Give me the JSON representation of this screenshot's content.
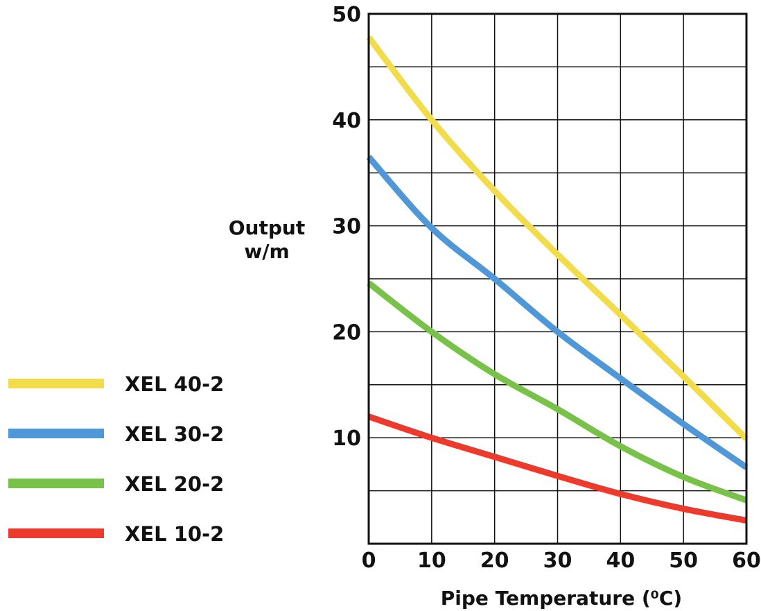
{
  "chart_data": {
    "type": "line",
    "xlabel": "Pipe Temperature (⁰C)",
    "ylabel_line1": "Output",
    "ylabel_line2": "w/m",
    "xlim": [
      0,
      60
    ],
    "ylim": [
      0,
      50
    ],
    "x_ticks": [
      0,
      10,
      20,
      30,
      40,
      50,
      60
    ],
    "y_ticks": [
      10,
      20,
      30,
      40,
      50
    ],
    "grid": true,
    "legend_placement": "left",
    "series": [
      {
        "name": "XEL 40-2",
        "color": "#f2dc4b",
        "x": [
          0,
          10,
          20,
          30,
          40,
          50,
          60
        ],
        "y": [
          47.8,
          40.0,
          33.3,
          27.3,
          21.6,
          15.8,
          9.9
        ]
      },
      {
        "name": "XEL 30-2",
        "color": "#4f97d6",
        "x": [
          0,
          10,
          20,
          30,
          40,
          50,
          60
        ],
        "y": [
          36.5,
          29.8,
          25.0,
          20.0,
          15.6,
          11.3,
          7.2
        ]
      },
      {
        "name": "XEL 20-2",
        "color": "#78c24a",
        "x": [
          0,
          10,
          20,
          30,
          40,
          50,
          60
        ],
        "y": [
          24.6,
          20.0,
          16.0,
          12.7,
          9.2,
          6.3,
          4.1
        ]
      },
      {
        "name": "XEL 10-2",
        "color": "#ec3b2c",
        "x": [
          0,
          10,
          20,
          30,
          40,
          50,
          60
        ],
        "y": [
          12.0,
          10.0,
          8.2,
          6.4,
          4.7,
          3.3,
          2.2
        ]
      }
    ]
  }
}
